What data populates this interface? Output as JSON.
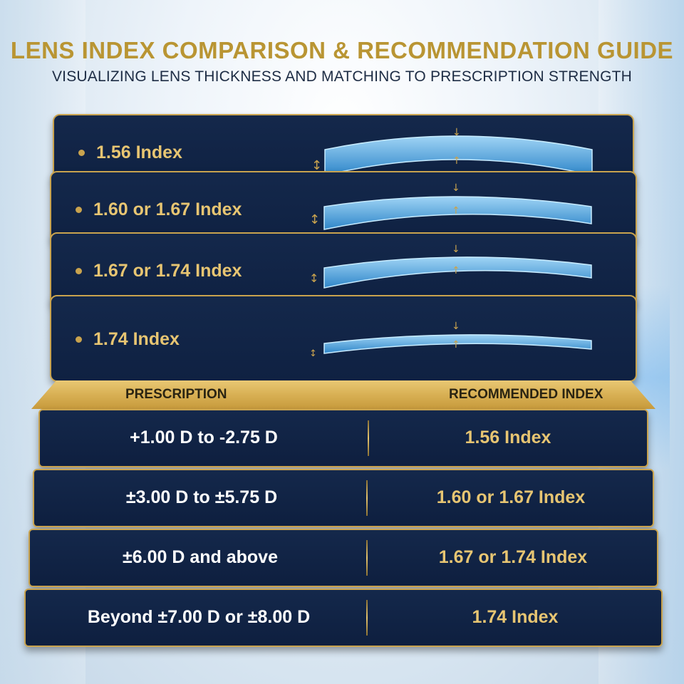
{
  "header": {
    "title": "LENS INDEX COMPARISON & RECOMMENDATION GUIDE",
    "subtitle": "VISUALIZING LENS THICKNESS AND MATCHING TO PRESCRIPTION STRENGTH"
  },
  "lenses": [
    {
      "label": "1.56 Index"
    },
    {
      "label": "1.60 or 1.67 Index"
    },
    {
      "label": "1.67 or 1.74 Index"
    },
    {
      "label": "1.74 Index"
    }
  ],
  "table": {
    "headers": {
      "prescription": "PRESCRIPTION",
      "recommended": "RECOMMENDED INDEX"
    },
    "rows": [
      {
        "prescription": "+1.00 D to -2.75 D",
        "index": "1.56 Index"
      },
      {
        "prescription": "±3.00 D to ±5.75 D",
        "index": "1.60 or 1.67 Index"
      },
      {
        "prescription": "±6.00 D and above",
        "index": "1.67 or 1.74 Index"
      },
      {
        "prescription": "Beyond ±7.00 D or ±8.00 D",
        "index": "1.74 Index"
      }
    ]
  },
  "colors": {
    "navy": "#14284b",
    "gold": "#c9a34e",
    "lens_blue": "#4aa3df"
  }
}
